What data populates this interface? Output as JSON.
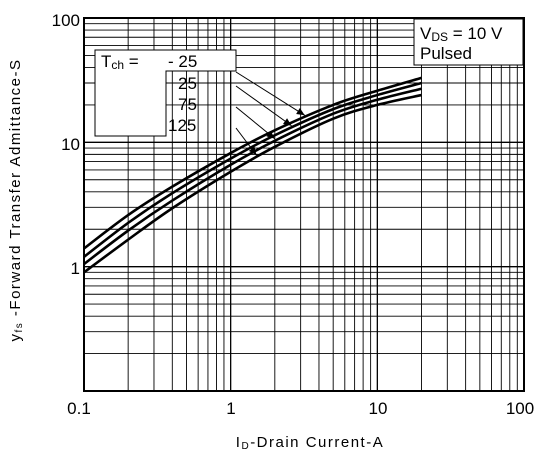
{
  "chart_data": {
    "type": "line",
    "xscale": "log",
    "yscale": "log",
    "xlim": [
      0.1,
      100
    ],
    "ylim": [
      0.1,
      100
    ],
    "grid": true,
    "x_ticks": [
      "0.1",
      "1",
      "10",
      "100"
    ],
    "y_ticks": [
      "1",
      "10",
      "100"
    ],
    "xlabel": {
      "main": "I",
      "sub": "D",
      "rest": "-Drain Current-A"
    },
    "ylabel": {
      "main": "y",
      "sub": "fs",
      "rest": " -Forward Transfer Admittance-S"
    },
    "condition": {
      "vds_main": "V",
      "vds_sub": "DS",
      "vds_rest": " = 10 V",
      "pulsed": "Pulsed"
    },
    "legend_title": {
      "main": "T",
      "sub": "ch",
      "rest": " ="
    },
    "series": [
      {
        "name": "- 25",
        "x": [
          0.1,
          0.2,
          0.4,
          1,
          2,
          5,
          10,
          20
        ],
        "values": [
          1.4,
          2.6,
          4.4,
          8.2,
          12.5,
          20,
          26,
          33
        ]
      },
      {
        "name": "25",
        "x": [
          0.1,
          0.2,
          0.4,
          1,
          2,
          5,
          10,
          20
        ],
        "values": [
          1.2,
          2.25,
          3.9,
          7.4,
          11.4,
          18.5,
          24,
          30
        ]
      },
      {
        "name": "75",
        "x": [
          0.1,
          0.2,
          0.4,
          1,
          2,
          5,
          10,
          20
        ],
        "values": [
          1.05,
          1.95,
          3.4,
          6.6,
          10.3,
          17,
          22,
          27
        ]
      },
      {
        "name": "125",
        "x": [
          0.1,
          0.2,
          0.4,
          1,
          2,
          5,
          10,
          20
        ],
        "values": [
          0.9,
          1.65,
          2.95,
          5.8,
          9.2,
          15.5,
          20,
          24
        ]
      }
    ]
  }
}
